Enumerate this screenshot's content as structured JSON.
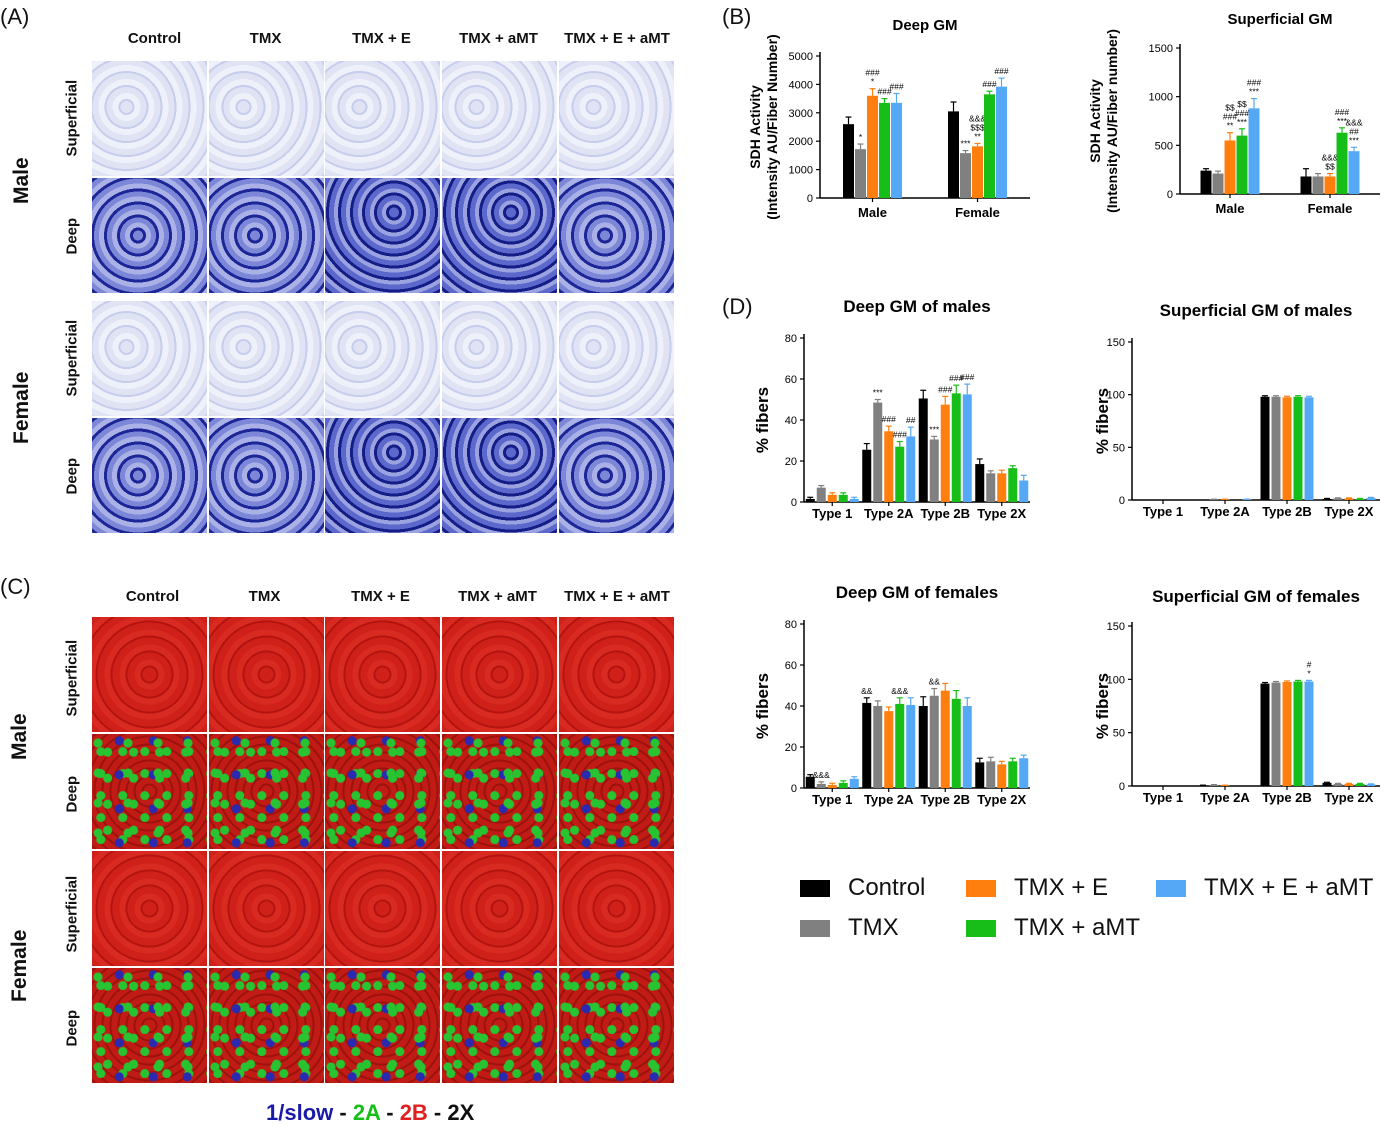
{
  "panels": {
    "a": "(A)",
    "b": "(B)",
    "c": "(C)",
    "d": "(D)"
  },
  "columns": [
    "Control",
    "TMX",
    "TMX + E",
    "TMX + aMT",
    "TMX + E + aMT"
  ],
  "sexes": [
    "Male",
    "Female"
  ],
  "layers": [
    "Superficial",
    "Deep"
  ],
  "ihc_legend": {
    "slow": "1/slow",
    "sep1": " - ",
    "a2": "2A",
    "sep2": " - ",
    "b2": "2B",
    "sep3": " - ",
    "x2": "2X"
  },
  "colors": {
    "Control": "#000000",
    "TMX": "#808080",
    "TMX + E": "#ff7f0e",
    "TMX + aMT": "#17be17",
    "TMX + E + aMT": "#55a8f5",
    "slow": "#1a1aa8",
    "a2": "#17be17",
    "b2": "#e02020",
    "x2": "#000000"
  },
  "legend": [
    "Control",
    "TMX",
    "TMX + E",
    "TMX + aMT",
    "TMX + E + aMT"
  ],
  "chart_data": [
    {
      "type": "bar",
      "title": "Deep GM",
      "ylabel": "SDH Activity\n(Intensity AU/Fiber Number)",
      "categories": [
        "Male",
        "Female"
      ],
      "ylim": [
        0,
        5000
      ],
      "yticks": [
        0,
        1000,
        2000,
        3000,
        4000,
        5000
      ],
      "series": [
        {
          "name": "Control",
          "values": [
            2600,
            3050
          ],
          "errors": [
            250,
            330
          ]
        },
        {
          "name": "TMX",
          "values": [
            1720,
            1580
          ],
          "errors": [
            180,
            90
          ]
        },
        {
          "name": "TMX + E",
          "values": [
            3600,
            1820
          ],
          "errors": [
            250,
            100
          ]
        },
        {
          "name": "TMX + aMT",
          "values": [
            3350,
            3650
          ],
          "errors": [
            150,
            110
          ]
        },
        {
          "name": "TMX + E + aMT",
          "values": [
            3350,
            3920
          ],
          "errors": [
            330,
            300
          ]
        }
      ],
      "annotations": [
        [
          [
            "",
            ""
          ],
          [
            "*",
            "***"
          ],
          [
            "###\n*",
            "&&&\n$$$\n**"
          ],
          [
            "###",
            "###"
          ],
          [
            "###",
            "###"
          ]
        ]
      ]
    },
    {
      "type": "bar",
      "title": "Superficial GM",
      "ylabel": "SDH Activity\n(Intensity AU/Fiber number)",
      "categories": [
        "Male",
        "Female"
      ],
      "ylim": [
        0,
        1500
      ],
      "yticks": [
        0,
        500,
        1000,
        1500
      ],
      "series": [
        {
          "name": "Control",
          "values": [
            240,
            180
          ],
          "errors": [
            20,
            80
          ]
        },
        {
          "name": "TMX",
          "values": [
            210,
            180
          ],
          "errors": [
            25,
            30
          ]
        },
        {
          "name": "TMX + E",
          "values": [
            550,
            180
          ],
          "errors": [
            80,
            30
          ]
        },
        {
          "name": "TMX + aMT",
          "values": [
            600,
            630
          ],
          "errors": [
            70,
            50
          ]
        },
        {
          "name": "TMX + E + aMT",
          "values": [
            880,
            440
          ],
          "errors": [
            100,
            40
          ]
        }
      ],
      "annotations": [
        [
          [
            "",
            ""
          ],
          [
            "",
            ""
          ],
          [
            "$$\n###\n**",
            "&&&\n$$"
          ],
          [
            "$$\n###\n***",
            "###\n***"
          ],
          [
            "###\n***",
            "&&&\n##\n***"
          ]
        ]
      ]
    },
    {
      "type": "bar",
      "title": "Deep GM of males",
      "ylabel": "% fibers",
      "categories": [
        "Type 1",
        "Type 2A",
        "Type 2B",
        "Type 2X"
      ],
      "ylim": [
        0,
        80
      ],
      "yticks": [
        0,
        20,
        40,
        60,
        80
      ],
      "series": [
        {
          "name": "Control",
          "values": [
            1.5,
            25.5,
            50.5,
            18.5
          ],
          "errors": [
            0.8,
            3,
            4,
            2.5
          ]
        },
        {
          "name": "TMX",
          "values": [
            7.0,
            48.5,
            30.5,
            14.0
          ],
          "errors": [
            1,
            1.5,
            1.5,
            1.2
          ]
        },
        {
          "name": "TMX + E",
          "values": [
            3.5,
            34.5,
            47.5,
            14.0
          ],
          "errors": [
            1,
            2.5,
            4,
            1.5
          ]
        },
        {
          "name": "TMX + aMT",
          "values": [
            3.5,
            27.0,
            53.0,
            16.5
          ],
          "errors": [
            1,
            2.5,
            4,
            1.2
          ]
        },
        {
          "name": "TMX + E + aMT",
          "values": [
            1.5,
            32.0,
            52.5,
            10.5
          ],
          "errors": [
            0.8,
            4.5,
            5,
            2.5
          ]
        }
      ],
      "annotations": [
        [
          [
            "",
            "",
            "",
            ""
          ],
          [
            "",
            "***",
            "***",
            ""
          ],
          [
            "",
            "###",
            "###",
            ""
          ],
          [
            "",
            "###",
            "###",
            ""
          ],
          [
            "",
            "##",
            "###",
            ""
          ]
        ]
      ]
    },
    {
      "type": "bar",
      "title": "Superficial GM of males",
      "ylabel": "% fibers",
      "categories": [
        "Type 1",
        "Type 2A",
        "Type 2B",
        "Type 2X"
      ],
      "ylim": [
        0,
        150
      ],
      "yticks": [
        0,
        50,
        100,
        150
      ],
      "series": [
        {
          "name": "Control",
          "values": [
            0,
            0,
            98,
            1
          ],
          "errors": [
            0,
            0,
            1,
            0.5
          ]
        },
        {
          "name": "TMX",
          "values": [
            0,
            0.5,
            98,
            1.5
          ],
          "errors": [
            0,
            0.3,
            1,
            0.5
          ]
        },
        {
          "name": "TMX + E",
          "values": [
            0,
            0.5,
            97.5,
            1.5
          ],
          "errors": [
            0,
            0.3,
            1,
            0.5
          ]
        },
        {
          "name": "TMX + aMT",
          "values": [
            0,
            0,
            98,
            1
          ],
          "errors": [
            0,
            0,
            1,
            0.5
          ]
        },
        {
          "name": "TMX + E + aMT",
          "values": [
            0,
            0.5,
            97.5,
            2
          ],
          "errors": [
            0,
            0.3,
            1,
            0.5
          ]
        }
      ],
      "annotations": []
    },
    {
      "type": "bar",
      "title": "Deep GM of females",
      "ylabel": "% fibers",
      "categories": [
        "Type 1",
        "Type 2A",
        "Type 2B",
        "Type 2X"
      ],
      "ylim": [
        0,
        80
      ],
      "yticks": [
        0,
        20,
        40,
        60,
        80
      ],
      "series": [
        {
          "name": "Control",
          "values": [
            5.5,
            41.5,
            40.0,
            12.5
          ],
          "errors": [
            1,
            2.5,
            4.5,
            2
          ]
        },
        {
          "name": "TMX",
          "values": [
            2.0,
            40.0,
            45.0,
            13.0
          ],
          "errors": [
            1,
            2.5,
            3.5,
            2
          ]
        },
        {
          "name": "TMX + E",
          "values": [
            1.5,
            37.5,
            47.5,
            11.5
          ],
          "errors": [
            0.8,
            2,
            3.5,
            1.5
          ]
        },
        {
          "name": "TMX + aMT",
          "values": [
            2.5,
            41.0,
            43.5,
            13.0
          ],
          "errors": [
            1,
            3,
            4,
            1.5
          ]
        },
        {
          "name": "TMX + E + aMT",
          "values": [
            4.5,
            40.5,
            40.0,
            14.5
          ],
          "errors": [
            1,
            3.5,
            4,
            1.5
          ]
        }
      ],
      "annotations": [
        [
          [
            "",
            "&&",
            "",
            ""
          ],
          [
            "&&&",
            "",
            "&&",
            ""
          ],
          [
            "",
            "",
            "",
            ""
          ],
          [
            "",
            "&&&",
            "",
            ""
          ],
          [
            "",
            "",
            "",
            ""
          ]
        ]
      ]
    },
    {
      "type": "bar",
      "title": "Superficial GM of females",
      "ylabel": "% fibers",
      "categories": [
        "Type 1",
        "Type 2A",
        "Type 2B",
        "Type 2X"
      ],
      "ylim": [
        0,
        150
      ],
      "yticks": [
        0,
        50,
        100,
        150
      ],
      "series": [
        {
          "name": "Control",
          "values": [
            0,
            0.5,
            96,
            3
          ],
          "errors": [
            0,
            0.3,
            1,
            0.5
          ]
        },
        {
          "name": "TMX",
          "values": [
            0,
            1,
            97,
            2
          ],
          "errors": [
            0,
            0.3,
            1,
            0.5
          ]
        },
        {
          "name": "TMX + E",
          "values": [
            0,
            0.5,
            97.5,
            2
          ],
          "errors": [
            0,
            0.3,
            1,
            0.5
          ]
        },
        {
          "name": "TMX + aMT",
          "values": [
            0,
            0,
            98,
            2
          ],
          "errors": [
            0,
            0,
            1,
            0.5
          ]
        },
        {
          "name": "TMX + E + aMT",
          "values": [
            0,
            0,
            98,
            1.5
          ],
          "errors": [
            0,
            0,
            1,
            0.5
          ]
        }
      ],
      "annotations": [
        [
          [
            "",
            "",
            "",
            ""
          ],
          [
            "",
            "",
            "",
            ""
          ],
          [
            "",
            "",
            "",
            ""
          ],
          [
            "",
            "",
            "",
            ""
          ],
          [
            "",
            "",
            "#\n*",
            ""
          ]
        ]
      ]
    }
  ]
}
